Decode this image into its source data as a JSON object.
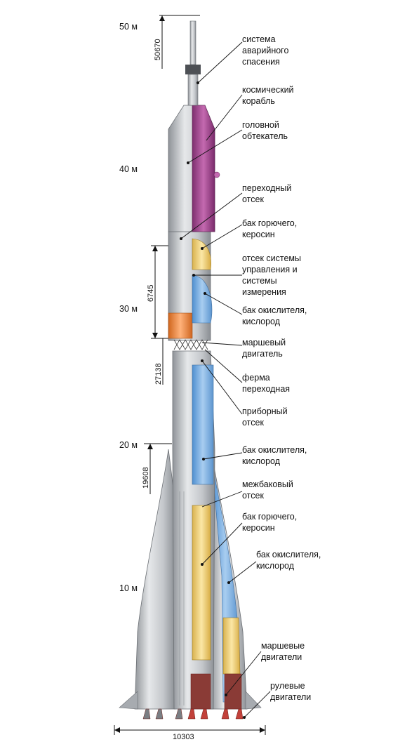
{
  "altitude_marks": [
    "50 м",
    "40 м",
    "30 м",
    "20 м",
    "10 м"
  ],
  "dimensions": {
    "total_height": "50670",
    "section_6745": "6745",
    "section_27138": "27138",
    "section_19608": "19608",
    "base_width": "10303"
  },
  "labels": [
    [
      "система",
      "аварийного",
      "спасения"
    ],
    [
      "космический",
      "корабль"
    ],
    [
      "головной",
      "обтекатель"
    ],
    [
      "переходный",
      "отсек"
    ],
    [
      "бак горючего,",
      "керосин"
    ],
    [
      "отсек системы",
      "управления и",
      "системы",
      "измерения"
    ],
    [
      "бак окислителя,",
      "кислород"
    ],
    [
      "маршевый",
      "двигатель"
    ],
    [
      "ферма",
      "переходная"
    ],
    [
      "приборный",
      "отсек"
    ],
    [
      "бак окислителя,",
      "кислород"
    ],
    [
      "межбаковый",
      "отсек"
    ],
    [
      "бак горючего,",
      "керосин"
    ],
    [
      "бак окислителя,",
      "кислород"
    ],
    [
      "маршевые",
      "двигатели"
    ],
    [
      "рулевые",
      "двигатели"
    ]
  ],
  "colors": {
    "body_metal": "#c9ccd0",
    "body_shadow": "#8d9196",
    "payload_magenta": "#b0569b",
    "fuel_yellow": "#f0d37a",
    "oxidizer_blue": "#7fb0e0",
    "orange_section": "#ee8a3a",
    "engine_red": "#c2413a"
  }
}
